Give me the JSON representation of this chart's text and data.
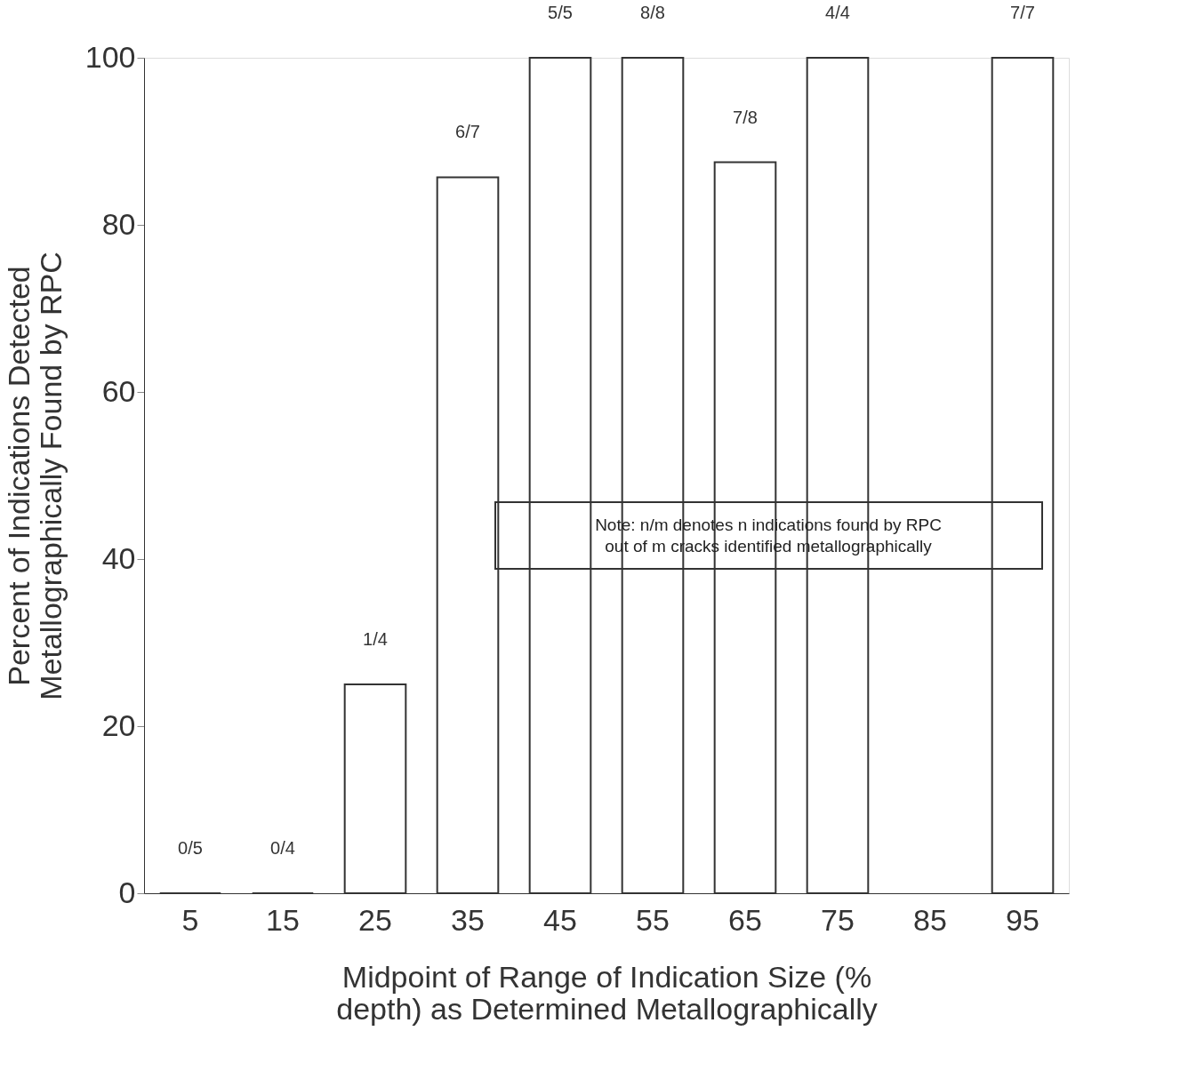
{
  "chart_data": {
    "type": "bar",
    "categories": [
      "5",
      "15",
      "25",
      "35",
      "45",
      "55",
      "65",
      "75",
      "85",
      "95"
    ],
    "values": [
      0,
      0,
      25,
      85.7,
      100,
      100,
      87.5,
      100,
      null,
      100
    ],
    "color": "#333333",
    "xlabel": "Midpoint of Range of Indication Size (% depth) as Determined Metallographically",
    "ylabel": "Percent of Indications Detected Metallographically Found by RPC",
    "ylim": [
      0,
      100
    ],
    "yticks": [
      0,
      20,
      40,
      60,
      80,
      100
    ],
    "annotations": [
      {
        "text": "0/5",
        "x": "5",
        "y": 0
      },
      {
        "text": "0/4",
        "x": "15",
        "y": 0
      },
      {
        "text": "1/4",
        "x": "25",
        "y": 25
      },
      {
        "text": "6/7",
        "x": "35",
        "y": 85.7
      },
      {
        "text": "5/5",
        "x": "45",
        "y": 100
      },
      {
        "text": "8/8",
        "x": "55",
        "y": 100
      },
      {
        "text": "7/8",
        "x": "65",
        "y": 87.5
      },
      {
        "text": "4/4",
        "x": "75",
        "y": 100
      },
      {
        "text": "7/7",
        "x": "95",
        "y": 100
      },
      "Note: n/m denotes n indications found by RPC out of m cracks identified metallographically"
    ],
    "grid": false
  }
}
